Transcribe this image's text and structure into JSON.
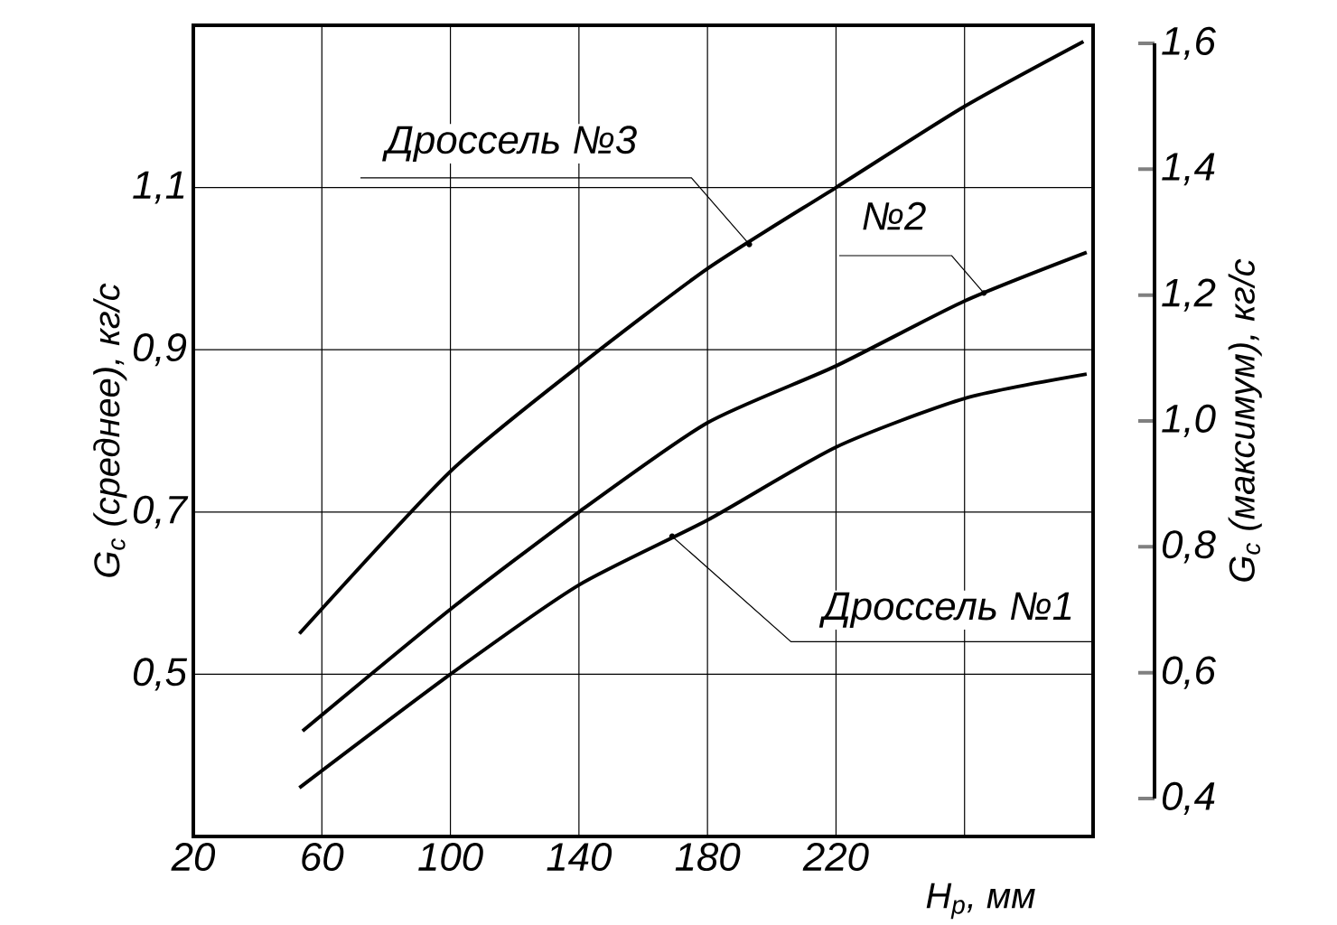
{
  "chart_data": {
    "type": "line",
    "xlabel": "H$_{р}$, мм",
    "ylabel": "G$_{c}$ (среднее), кг/с",
    "y2label": "G$_{c}$ (максимум), кг/с",
    "xlim": [
      20,
      300
    ],
    "xticks": [
      20,
      60,
      100,
      140,
      180,
      220,
      {
        "value": 260,
        "label": null
      }
    ],
    "ylim": [
      0.3,
      1.3
    ],
    "yticks": [
      {
        "value": 0.5,
        "label": "0,5"
      },
      {
        "value": 0.7,
        "label": "0,7"
      },
      {
        "value": 0.9,
        "label": "0,9"
      },
      {
        "value": 1.1,
        "label": "1,1"
      }
    ],
    "y2lim": [
      0.4,
      1.6
    ],
    "y2ticks": [
      {
        "value": 0.4,
        "label": "0,4"
      },
      {
        "value": 0.6,
        "label": "0,6"
      },
      {
        "value": 0.8,
        "label": "0,8"
      },
      {
        "value": 1.0,
        "label": "1,0"
      },
      {
        "value": 1.2,
        "label": "1,2"
      },
      {
        "value": 1.4,
        "label": "1,4"
      },
      {
        "value": 1.6,
        "label": "1,6"
      }
    ],
    "grid": true,
    "marker": "none",
    "line_style": "solid",
    "series": [
      {
        "color": "#000000",
        "x": [
          53,
          100,
          140,
          180,
          220,
          260,
          298
        ],
        "values": [
          0.36,
          0.5,
          0.61,
          0.69,
          0.78,
          0.84,
          0.87
        ]
      },
      {
        "color": "#000000",
        "x": [
          54,
          100,
          140,
          180,
          220,
          260,
          298
        ],
        "values": [
          0.43,
          0.58,
          0.7,
          0.81,
          0.88,
          0.96,
          1.02
        ]
      },
      {
        "color": "#000000",
        "x": [
          53,
          100,
          140,
          180,
          220,
          260,
          297
        ],
        "values": [
          0.55,
          0.75,
          0.88,
          1.0,
          1.1,
          1.2,
          1.28
        ]
      }
    ],
    "annotations": [
      {
        "text": "Дроссель №3",
        "x": 193,
        "y": 1.03
      },
      {
        "text": "№2",
        "x": 266,
        "y": 0.97
      },
      {
        "text": "Дроссель №1",
        "x": 169,
        "y": 0.67
      }
    ]
  }
}
